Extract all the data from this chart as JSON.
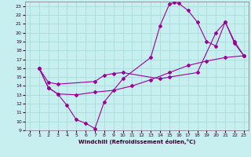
{
  "xlabel": "Windchill (Refroidissement éolien,°C)",
  "bg_color": "#c8efef",
  "grid_color": "#a8dcdc",
  "line_color": "#990099",
  "xlim": [
    -0.5,
    23.5
  ],
  "ylim": [
    9,
    23.5
  ],
  "xticks": [
    0,
    1,
    2,
    3,
    4,
    5,
    6,
    7,
    8,
    9,
    10,
    11,
    12,
    13,
    14,
    15,
    16,
    17,
    18,
    19,
    20,
    21,
    22,
    23
  ],
  "yticks": [
    9,
    10,
    11,
    12,
    13,
    14,
    15,
    16,
    17,
    18,
    19,
    20,
    21,
    22,
    23
  ],
  "line1_x": [
    1,
    2,
    3,
    4,
    5,
    6,
    7,
    8,
    10,
    13,
    14,
    15,
    15.5,
    16,
    17,
    18,
    19,
    20,
    21,
    22,
    23
  ],
  "line1_y": [
    16,
    13.8,
    13.1,
    11.8,
    10.2,
    9.8,
    9.2,
    12.2,
    14.8,
    17.2,
    20.8,
    23.2,
    23.4,
    23.3,
    22.5,
    21.2,
    19.0,
    18.5,
    21.2,
    18.8,
    17.4
  ],
  "line2_x": [
    1,
    2,
    3,
    7,
    8,
    9,
    10,
    14,
    15,
    18,
    20,
    21,
    22,
    23
  ],
  "line2_y": [
    16.0,
    14.4,
    14.2,
    14.5,
    15.2,
    15.4,
    15.5,
    14.8,
    15.0,
    15.5,
    20.0,
    21.2,
    19.0,
    17.4
  ],
  "line3_x": [
    1,
    2,
    3,
    5,
    7,
    9,
    11,
    13,
    15,
    17,
    19,
    21,
    23
  ],
  "line3_y": [
    16.0,
    13.8,
    13.1,
    13.0,
    13.3,
    13.5,
    14.0,
    14.7,
    15.5,
    16.3,
    16.8,
    17.2,
    17.4
  ]
}
